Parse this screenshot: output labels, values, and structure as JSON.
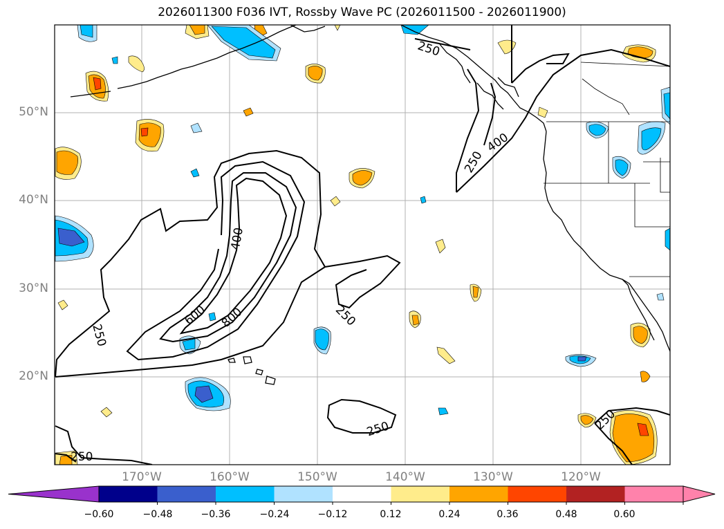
{
  "title": "2026011300 F036 IVT, Rossby Wave PC (2026011500 - 2026011900)",
  "lat_labels": [
    "50°N",
    "40°N",
    "30°N",
    "20°N"
  ],
  "lon_labels": [
    "170°W",
    "160°W",
    "150°W",
    "140°W",
    "130°W",
    "120°W"
  ],
  "contour_labels": [
    "250",
    "250",
    "250",
    "250",
    "250",
    "250",
    "400",
    "400",
    "600",
    "800"
  ],
  "colorbar": {
    "tick_labels": [
      "−0.60",
      "−0.48",
      "−0.36",
      "−0.24",
      "−0.12",
      "0.12",
      "0.24",
      "0.36",
      "0.48",
      "0.60"
    ],
    "colors": [
      "#9932cc",
      "#00008b",
      "#3a5fcd",
      "#00bfff",
      "#b0e2ff",
      "#ffffff",
      "#ffec8b",
      "#ffa500",
      "#ff4500",
      "#b22222",
      "#ff82ab",
      "#ff82ab"
    ]
  },
  "colors": {
    "neg_light": "#b0e2ff",
    "neg_mid": "#00bfff",
    "neg_dark": "#3a5fcd",
    "pos_light": "#ffec8b",
    "pos_mid": "#ffa500",
    "pos_dark": "#ff4500"
  }
}
